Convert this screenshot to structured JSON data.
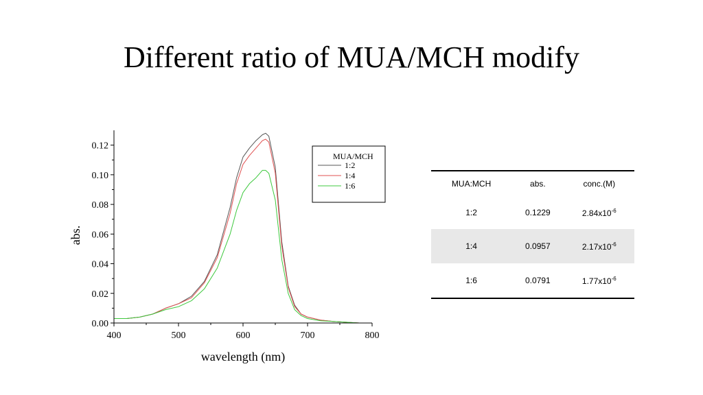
{
  "slide": {
    "title": "Different ratio of MUA/MCH modify"
  },
  "chart_data": {
    "type": "line",
    "xlabel": "wavelength (nm)",
    "ylabel": "abs.",
    "xlim": [
      400,
      800
    ],
    "ylim": [
      0,
      0.13
    ],
    "xticks": [
      400,
      500,
      600,
      700,
      800
    ],
    "yticks": [
      0.0,
      0.02,
      0.04,
      0.06,
      0.08,
      0.1,
      0.12
    ],
    "xtick_labels": [
      "400",
      "500",
      "600",
      "700",
      "800"
    ],
    "ytick_labels": [
      "0.00",
      "0.02",
      "0.04",
      "0.06",
      "0.08",
      "0.10",
      "0.12"
    ],
    "legend": {
      "title": "MUA/MCH",
      "position": "top-right"
    },
    "series": [
      {
        "name": "1:2",
        "color": "#555555",
        "x": [
          400,
          420,
          440,
          460,
          480,
          500,
          520,
          540,
          560,
          580,
          590,
          600,
          610,
          620,
          630,
          635,
          640,
          650,
          660,
          670,
          680,
          690,
          700,
          720,
          740,
          760,
          780
        ],
        "y": [
          0.003,
          0.003,
          0.004,
          0.006,
          0.01,
          0.013,
          0.018,
          0.028,
          0.046,
          0.078,
          0.098,
          0.112,
          0.118,
          0.123,
          0.127,
          0.128,
          0.126,
          0.105,
          0.055,
          0.025,
          0.012,
          0.006,
          0.004,
          0.002,
          0.001,
          0.0005,
          0.0
        ]
      },
      {
        "name": "1:4",
        "color": "#e05050",
        "x": [
          400,
          420,
          440,
          460,
          480,
          500,
          520,
          540,
          560,
          580,
          590,
          600,
          610,
          620,
          630,
          635,
          640,
          650,
          660,
          670,
          680,
          690,
          700,
          720,
          740,
          760,
          780
        ],
        "y": [
          0.003,
          0.003,
          0.004,
          0.006,
          0.01,
          0.013,
          0.017,
          0.027,
          0.044,
          0.074,
          0.094,
          0.107,
          0.113,
          0.118,
          0.123,
          0.124,
          0.122,
          0.101,
          0.052,
          0.024,
          0.011,
          0.006,
          0.004,
          0.002,
          0.001,
          0.0005,
          0.0
        ]
      },
      {
        "name": "1:6",
        "color": "#3cc83c",
        "x": [
          400,
          420,
          440,
          460,
          480,
          500,
          520,
          540,
          560,
          580,
          590,
          600,
          610,
          620,
          630,
          635,
          640,
          650,
          660,
          670,
          680,
          690,
          700,
          720,
          740,
          760,
          780
        ],
        "y": [
          0.003,
          0.003,
          0.004,
          0.006,
          0.009,
          0.011,
          0.015,
          0.023,
          0.037,
          0.06,
          0.076,
          0.088,
          0.094,
          0.098,
          0.103,
          0.103,
          0.101,
          0.083,
          0.043,
          0.02,
          0.009,
          0.005,
          0.003,
          0.0015,
          0.001,
          0.0005,
          0.0
        ]
      }
    ]
  },
  "table": {
    "headers": [
      "MUA:MCH",
      "abs.",
      "conc.(M)"
    ],
    "rows": [
      {
        "ratio": "1:2",
        "abs": "0.1229",
        "conc_base": "2.84x10",
        "conc_exp": "-6"
      },
      {
        "ratio": "1:4",
        "abs": "0.0957",
        "conc_base": "2.17x10",
        "conc_exp": "-6"
      },
      {
        "ratio": "1:6",
        "abs": "0.0791",
        "conc_base": "1.77x10",
        "conc_exp": "-6"
      }
    ]
  }
}
